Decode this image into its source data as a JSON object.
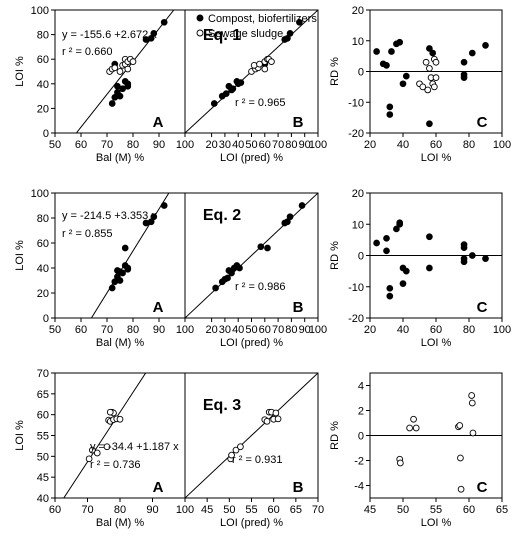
{
  "figure": {
    "legend": {
      "filled": "Compost, biofertilizers",
      "open": "Sewage sludge"
    }
  },
  "chart_data": [
    {
      "id": "r1A",
      "type": "scatter",
      "panel_label": "A",
      "xlabel": "Bal (M) %",
      "ylabel": "LOI %",
      "xlim": [
        50,
        100
      ],
      "ylim": [
        0,
        100
      ],
      "xticks": [
        50,
        60,
        70,
        80,
        90,
        100
      ],
      "yticks": [
        0,
        20,
        40,
        60,
        80,
        100
      ],
      "equation": "y = -155.6 +2.672 x",
      "r2": "r ² = 0.660",
      "fit_line": [
        [
          58.2,
          0
        ],
        [
          95.7,
          100
        ]
      ],
      "series": [
        {
          "name": "Compost, biofertilizers",
          "filled": true,
          "points": [
            [
              72,
              24
            ],
            [
              73,
              29
            ],
            [
              74,
              33
            ],
            [
              75,
              30
            ],
            [
              74,
              38
            ],
            [
              76,
              36
            ],
            [
              77,
              42
            ],
            [
              78,
              38
            ],
            [
              78,
              40
            ],
            [
              73,
              56
            ],
            [
              85,
              76
            ],
            [
              87,
              77
            ],
            [
              88,
              81
            ],
            [
              92,
              90
            ]
          ]
        },
        {
          "name": "Sewage sludge",
          "filled": false,
          "points": [
            [
              71,
              50
            ],
            [
              72,
              52
            ],
            [
              73,
              53
            ],
            [
              75,
              50
            ],
            [
              76,
              55
            ],
            [
              77,
              56
            ],
            [
              77,
              60
            ],
            [
              78,
              58
            ],
            [
              79,
              60
            ],
            [
              78,
              52
            ],
            [
              80,
              58
            ]
          ]
        }
      ]
    },
    {
      "id": "r1B",
      "type": "scatter",
      "panel_label": "B",
      "equation_label": "Eq. 1",
      "xlabel": "LOI (pred) %",
      "xlim": [
        0,
        100
      ],
      "ylim": [
        0,
        100
      ],
      "xticks": [
        20,
        30,
        40,
        50,
        60,
        70,
        80,
        90,
        100
      ],
      "r2": "r ² = 0.965",
      "fit_line": [
        [
          0,
          0
        ],
        [
          100,
          100
        ]
      ],
      "series": [
        {
          "name": "Compost, biofertilizers",
          "filled": true,
          "points": [
            [
              22,
              24
            ],
            [
              28,
              30
            ],
            [
              31,
              32
            ],
            [
              35,
              35
            ],
            [
              33,
              38
            ],
            [
              36,
              36
            ],
            [
              39,
              42
            ],
            [
              40,
              40
            ],
            [
              42,
              41
            ],
            [
              60,
              56
            ],
            [
              75,
              76
            ],
            [
              77,
              77
            ],
            [
              79,
              81
            ],
            [
              86,
              90
            ]
          ]
        },
        {
          "name": "Sewage sludge",
          "filled": false,
          "points": [
            [
              50,
              50
            ],
            [
              53,
              52
            ],
            [
              55,
              53
            ],
            [
              52,
              55
            ],
            [
              56,
              56
            ],
            [
              60,
              58
            ],
            [
              62,
              60
            ],
            [
              63,
              60
            ],
            [
              65,
              58
            ],
            [
              60,
              52
            ]
          ]
        }
      ]
    },
    {
      "id": "r1C",
      "type": "scatter",
      "panel_label": "C",
      "xlabel": "LOI %",
      "ylabel": "RD %",
      "xlim": [
        20,
        100
      ],
      "ylim": [
        -20,
        20
      ],
      "xticks": [
        20,
        40,
        60,
        80,
        100
      ],
      "yticks": [
        -20,
        -10,
        0,
        10,
        20
      ],
      "zero_line": true,
      "series": [
        {
          "name": "Compost, biofertilizers",
          "filled": true,
          "points": [
            [
              24,
              6.5
            ],
            [
              28,
              2.5
            ],
            [
              30,
              2.0
            ],
            [
              32,
              -11.5
            ],
            [
              32,
              -14
            ],
            [
              33,
              6.5
            ],
            [
              36,
              9
            ],
            [
              38,
              9.5
            ],
            [
              40,
              -4
            ],
            [
              42,
              -1.5
            ],
            [
              56,
              7.5
            ],
            [
              58,
              6
            ],
            [
              56,
              -17
            ],
            [
              77,
              3
            ],
            [
              77,
              -1
            ],
            [
              77,
              -2
            ],
            [
              82,
              6
            ],
            [
              90,
              8.5
            ]
          ]
        },
        {
          "name": "Sewage sludge",
          "filled": false,
          "points": [
            [
              50,
              -4
            ],
            [
              52,
              -5
            ],
            [
              54,
              3
            ],
            [
              55,
              -6
            ],
            [
              56,
              1
            ],
            [
              57,
              -2
            ],
            [
              58,
              -4
            ],
            [
              59,
              4
            ],
            [
              59,
              -5
            ],
            [
              60,
              -2
            ],
            [
              60,
              3
            ]
          ]
        }
      ]
    },
    {
      "id": "r2A",
      "type": "scatter",
      "panel_label": "A",
      "xlabel": "Bal (M) %",
      "ylabel": "LOI %",
      "xlim": [
        50,
        100
      ],
      "ylim": [
        0,
        100
      ],
      "xticks": [
        50,
        60,
        70,
        80,
        90,
        100
      ],
      "yticks": [
        0,
        20,
        40,
        60,
        80,
        100
      ],
      "equation": "y = -214.5 +3.353 x",
      "r2": "r ² = 0.855",
      "fit_line": [
        [
          64.0,
          0
        ],
        [
          93.8,
          100
        ]
      ],
      "series": [
        {
          "name": "Compost, biofertilizers",
          "filled": true,
          "points": [
            [
              72,
              24
            ],
            [
              73,
              29
            ],
            [
              74,
              33
            ],
            [
              75,
              30
            ],
            [
              74,
              38
            ],
            [
              76,
              36
            ],
            [
              77,
              42
            ],
            [
              78,
              40
            ],
            [
              77,
              56
            ],
            [
              85,
              76
            ],
            [
              87,
              77
            ],
            [
              88,
              81
            ],
            [
              92,
              90
            ],
            [
              75,
              37
            ],
            [
              78,
              39
            ]
          ]
        }
      ]
    },
    {
      "id": "r2B",
      "type": "scatter",
      "panel_label": "B",
      "equation_label": "Eq. 2",
      "xlabel": "LOI (pred) %",
      "xlim": [
        0,
        100
      ],
      "ylim": [
        0,
        100
      ],
      "xticks": [
        20,
        30,
        40,
        50,
        60,
        70,
        80,
        90,
        100
      ],
      "r2": "r ² = 0.986",
      "fit_line": [
        [
          0,
          0
        ],
        [
          100,
          100
        ]
      ],
      "series": [
        {
          "name": "Compost, biofertilizers",
          "filled": true,
          "points": [
            [
              23,
              24
            ],
            [
              28,
              29
            ],
            [
              30,
              31
            ],
            [
              32,
              32
            ],
            [
              33,
              38
            ],
            [
              35,
              36
            ],
            [
              37,
              40
            ],
            [
              39,
              42
            ],
            [
              41,
              40
            ],
            [
              57,
              57
            ],
            [
              62,
              56
            ],
            [
              75,
              76
            ],
            [
              77,
              77
            ],
            [
              79,
              81
            ],
            [
              88,
              90
            ]
          ]
        }
      ]
    },
    {
      "id": "r2C",
      "type": "scatter",
      "panel_label": "C",
      "xlabel": "LOI %",
      "ylabel": "RD %",
      "xlim": [
        20,
        100
      ],
      "ylim": [
        -20,
        20
      ],
      "xticks": [
        20,
        40,
        60,
        80,
        100
      ],
      "yticks": [
        -20,
        -10,
        0,
        10,
        20
      ],
      "zero_line": true,
      "series": [
        {
          "name": "Compost, biofertilizers",
          "filled": true,
          "points": [
            [
              24,
              4
            ],
            [
              30,
              5.5
            ],
            [
              30,
              1.5
            ],
            [
              32,
              -10.5
            ],
            [
              32,
              -13
            ],
            [
              36,
              8.5
            ],
            [
              38,
              10
            ],
            [
              38,
              10.5
            ],
            [
              40,
              -4
            ],
            [
              42,
              -5
            ],
            [
              40,
              -9
            ],
            [
              56,
              6
            ],
            [
              56,
              -4
            ],
            [
              77,
              3.5
            ],
            [
              77,
              2.5
            ],
            [
              77,
              -1
            ],
            [
              77,
              -2
            ],
            [
              82,
              0
            ],
            [
              90,
              -1
            ]
          ]
        }
      ]
    },
    {
      "id": "r3A",
      "type": "scatter",
      "panel_label": "A",
      "xlabel": "Bal (M) %",
      "ylabel": "LOI %",
      "xlim": [
        60,
        100
      ],
      "ylim": [
        40,
        70
      ],
      "xticks": [
        60,
        70,
        80,
        90,
        100
      ],
      "yticks": [
        40,
        45,
        50,
        55,
        60,
        65,
        70
      ],
      "equation": "y = -34.4 +1.187 x",
      "r2": "r ² = 0.736",
      "fit_line": [
        [
          62.7,
          40
        ],
        [
          87.9,
          70
        ]
      ],
      "series": [
        {
          "name": "Sewage sludge",
          "filled": false,
          "points": [
            [
              70.5,
              49.4
            ],
            [
              71.5,
              51.5
            ],
            [
              73,
              50.8
            ],
            [
              76,
              52.3
            ],
            [
              76.5,
              58.7
            ],
            [
              77,
              58.4
            ],
            [
              77.5,
              60.6
            ],
            [
              78,
              60.4
            ],
            [
              78,
              58.8
            ],
            [
              79,
              59
            ],
            [
              80,
              58.9
            ],
            [
              77,
              60.6
            ]
          ]
        }
      ]
    },
    {
      "id": "r3B",
      "type": "scatter",
      "panel_label": "B",
      "equation_label": "Eq. 3",
      "xlabel": "LOI (pred) %",
      "xlim": [
        40,
        70
      ],
      "ylim": [
        40,
        70
      ],
      "xticks": [
        45,
        50,
        55,
        60,
        65,
        70
      ],
      "r2": "r ² = 0.931",
      "fit_line": [
        [
          40,
          40
        ],
        [
          70,
          70
        ]
      ],
      "series": [
        {
          "name": "Sewage sludge",
          "filled": false,
          "points": [
            [
              50.3,
              49.4
            ],
            [
              50.5,
              50.3
            ],
            [
              51.5,
              51.5
            ],
            [
              52.5,
              52.3
            ],
            [
              58,
              58.8
            ],
            [
              58.5,
              58.4
            ],
            [
              59,
              60.6
            ],
            [
              59.5,
              60.6
            ],
            [
              60,
              58.9
            ],
            [
              60.5,
              60.4
            ],
            [
              61,
              59
            ]
          ]
        }
      ]
    },
    {
      "id": "r3C",
      "type": "scatter",
      "panel_label": "C",
      "xlabel": "LOI %",
      "ylabel": "RD %",
      "xlim": [
        45,
        65
      ],
      "ylim": [
        -5,
        5
      ],
      "xticks": [
        45,
        50,
        55,
        60,
        65
      ],
      "yticks": [
        -4,
        -2,
        0,
        2,
        4
      ],
      "zero_line": true,
      "series": [
        {
          "name": "Sewage sludge",
          "filled": false,
          "points": [
            [
              49.5,
              -1.9
            ],
            [
              49.6,
              -2.2
            ],
            [
              51,
              0.6
            ],
            [
              51.6,
              1.3
            ],
            [
              52,
              0.6
            ],
            [
              58.4,
              0.7
            ],
            [
              58.6,
              0.8
            ],
            [
              58.7,
              -1.8
            ],
            [
              58.8,
              -4.3
            ],
            [
              60.4,
              3.2
            ],
            [
              60.5,
              2.6
            ],
            [
              60.6,
              0.2
            ]
          ]
        }
      ]
    }
  ]
}
